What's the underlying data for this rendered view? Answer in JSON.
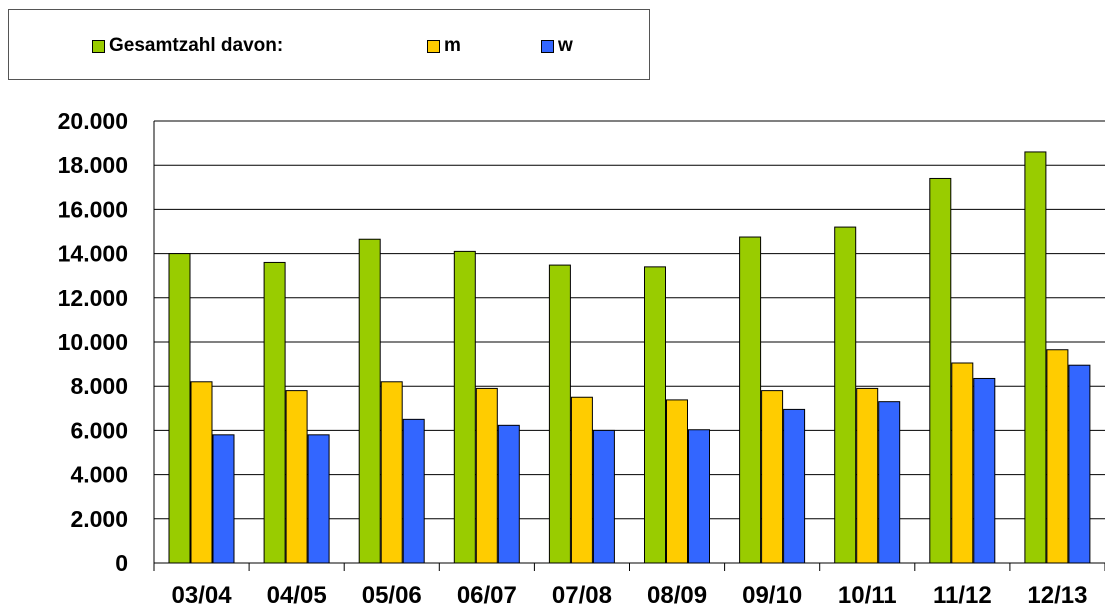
{
  "chart_data": {
    "type": "bar",
    "categories": [
      "03/04",
      "04/05",
      "05/06",
      "06/07",
      "07/08",
      "08/09",
      "09/10",
      "10/11",
      "11/12",
      "12/13"
    ],
    "series": [
      {
        "name": "Gesamtzahl davon:",
        "color": "#99CC00",
        "values": [
          14000,
          13600,
          14650,
          14100,
          13480,
          13400,
          14750,
          15200,
          17400,
          18600
        ]
      },
      {
        "name": "m",
        "color": "#FFCC00",
        "values": [
          8200,
          7800,
          8200,
          7900,
          7500,
          7380,
          7800,
          7900,
          9050,
          9650
        ]
      },
      {
        "name": "w",
        "color": "#3366FF",
        "values": [
          5800,
          5800,
          6500,
          6230,
          6000,
          6030,
          6950,
          7300,
          8350,
          8950
        ]
      }
    ],
    "ylim": [
      0,
      20000
    ],
    "yticks": [
      "0",
      "2.000",
      "4.000",
      "6.000",
      "8.000",
      "10.000",
      "12.000",
      "14.000",
      "16.000",
      "18.000",
      "20.000"
    ],
    "grid": true,
    "legend_position": "top-left",
    "xlabel": "",
    "ylabel": ""
  }
}
